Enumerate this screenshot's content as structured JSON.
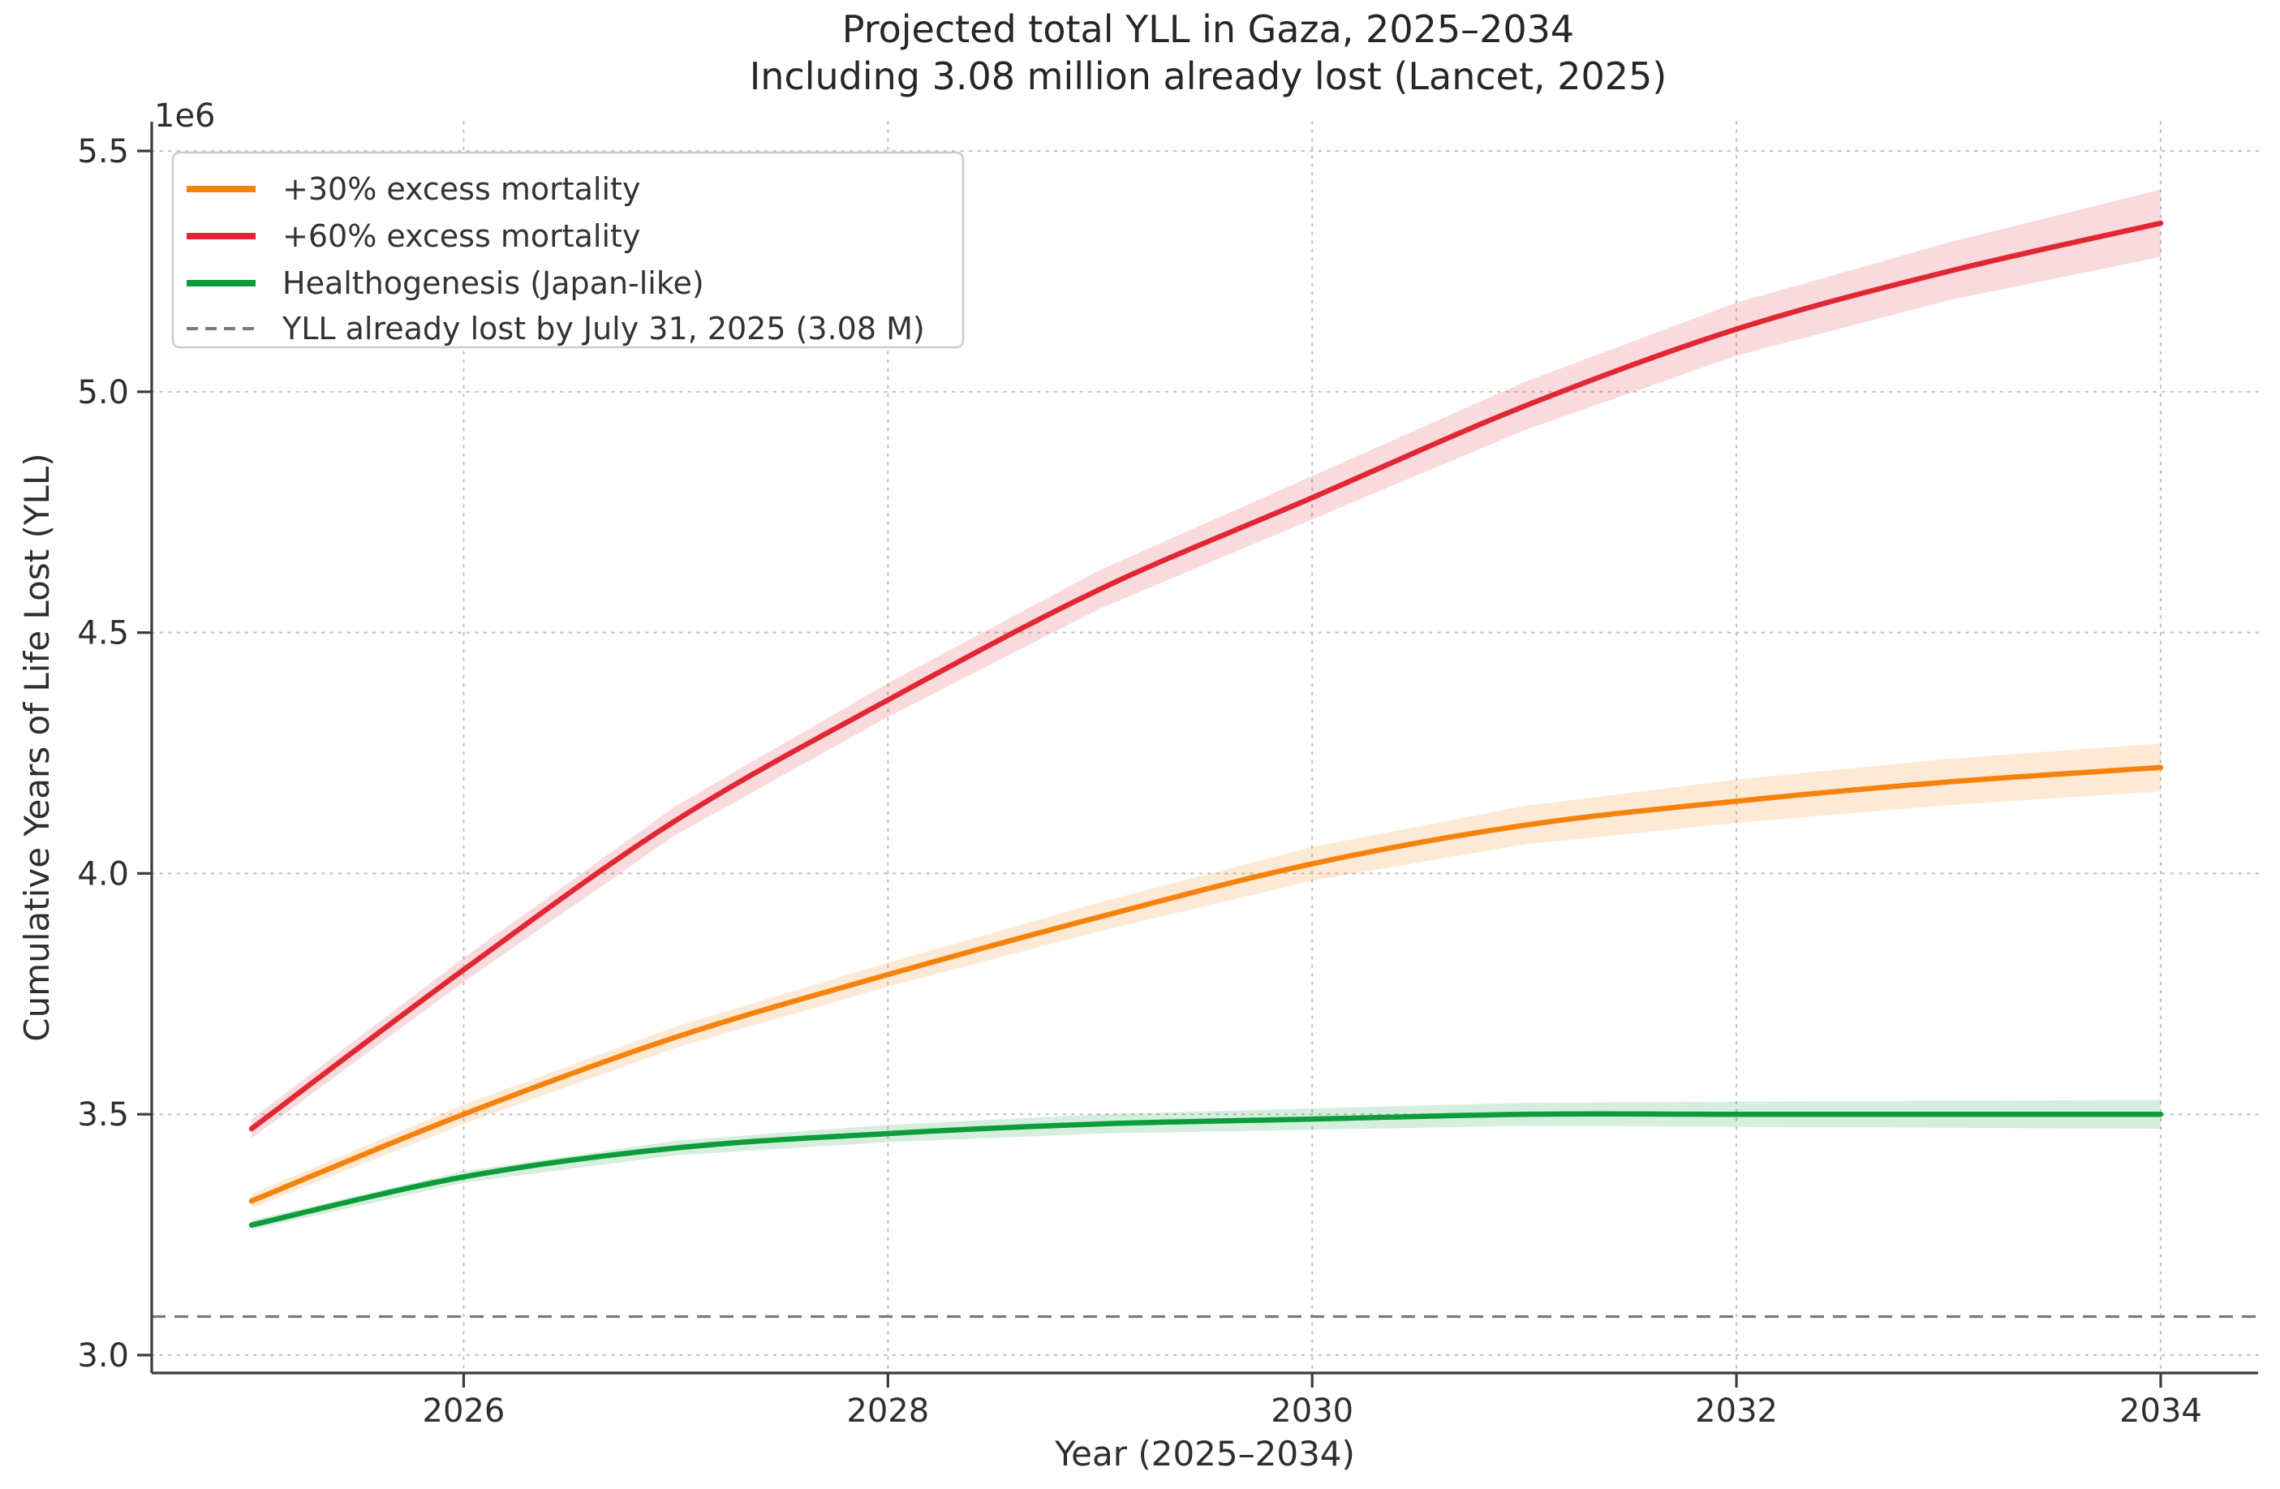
{
  "figure": {
    "title_line1": "Projected total YLL in Gaza, 2025–2034",
    "title_line2": "Including 3.08 million already lost (Lancet, 2025)",
    "offset_label": "1e6",
    "xlabel": "Year (2025–2034)",
    "ylabel": "Cumulative Years of Life Lost (YLL)"
  },
  "chart_data": {
    "type": "line",
    "title": "Projected total YLL in Gaza, 2025–2034",
    "subtitle": "Including 3.08 million already lost (Lancet, 2025)",
    "xlabel": "Year (2025–2034)",
    "ylabel": "Cumulative Years of Life Lost (YLL)",
    "y_units_multiplier_label": "1e6",
    "grid": true,
    "legend_position": "upper left",
    "x": [
      2025,
      2026,
      2027,
      2028,
      2029,
      2030,
      2031,
      2032,
      2033,
      2034
    ],
    "xlim": [
      2024.53,
      2034.46
    ],
    "ylim_millions": [
      2.96,
      5.56
    ],
    "xtick_labels": [
      "2026",
      "2028",
      "2030",
      "2032",
      "2034"
    ],
    "xtick_values": [
      2026,
      2028,
      2030,
      2032,
      2034
    ],
    "ytick_labels": [
      "3.0",
      "3.5",
      "4.0",
      "4.5",
      "5.0",
      "5.5"
    ],
    "ytick_values_millions": [
      3.0,
      3.5,
      4.0,
      4.5,
      5.0,
      5.5
    ],
    "series": [
      {
        "key": "plus30",
        "name": "+30% excess mortality",
        "color": "#f5820d",
        "values_millions": [
          3.32,
          3.5,
          3.66,
          3.79,
          3.91,
          4.02,
          4.1,
          4.15,
          4.19,
          4.22
        ],
        "band_halfwidth_millions": [
          0.015,
          0.02,
          0.022,
          0.025,
          0.03,
          0.035,
          0.04,
          0.045,
          0.048,
          0.05
        ]
      },
      {
        "key": "plus60",
        "name": "+60% excess mortality",
        "color": "#e02733",
        "values_millions": [
          3.47,
          3.8,
          4.11,
          4.36,
          4.59,
          4.78,
          4.97,
          5.13,
          5.25,
          5.35
        ],
        "band_halfwidth_millions": [
          0.02,
          0.025,
          0.03,
          0.035,
          0.04,
          0.045,
          0.05,
          0.055,
          0.06,
          0.07
        ]
      },
      {
        "key": "healthogenesis",
        "name": "Healthogenesis (Japan-like)",
        "color": "#0d9c3c",
        "values_millions": [
          3.27,
          3.37,
          3.43,
          3.46,
          3.48,
          3.49,
          3.5,
          3.5,
          3.5,
          3.5
        ],
        "band_halfwidth_millions": [
          0.01,
          0.012,
          0.015,
          0.018,
          0.02,
          0.022,
          0.024,
          0.026,
          0.028,
          0.03
        ]
      },
      {
        "key": "baseline",
        "name": "YLL already lost by July 31, 2025 (3.08 M)",
        "color": "#7a7a7a",
        "style": "dashed",
        "constant_millions": 3.08
      }
    ]
  }
}
